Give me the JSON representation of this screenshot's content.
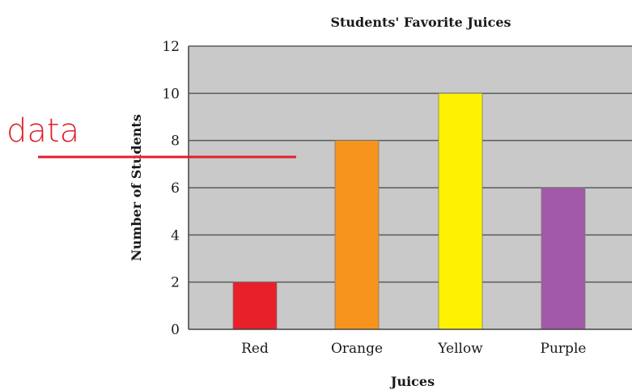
{
  "chart_data": {
    "type": "bar",
    "title": "Students' Favorite Juices",
    "xlabel": "Juices",
    "ylabel": "Number of Students",
    "categories": [
      "Red",
      "Orange",
      "Yellow",
      "Purple"
    ],
    "values": [
      2,
      8,
      10,
      6
    ],
    "ylim": [
      0,
      12
    ],
    "yticks": [
      "0",
      "2",
      "4",
      "6",
      "8",
      "10",
      "12"
    ],
    "bar_colors": [
      "#e8202a",
      "#f7941d",
      "#fff200",
      "#a259a8"
    ],
    "plot_background": "#c9c9c9",
    "grid": true
  },
  "annotation": {
    "text": "data",
    "color": "#e0202a"
  }
}
